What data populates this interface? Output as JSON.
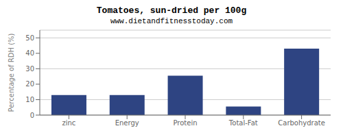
{
  "chart_data": {
    "type": "bar",
    "title": "Tomatoes, sun-dried per 100g",
    "subtitle": "www.dietandfitnesstoday.com",
    "categories": [
      "zinc",
      "Energy",
      "Protein",
      "Total-Fat",
      "Carbohydrate"
    ],
    "values": [
      13.0,
      13.0,
      25.5,
      5.5,
      43.0
    ],
    "color": "#2e4482",
    "ylabel": "Percentage of RDH (%)",
    "ylim": [
      0,
      55
    ],
    "yticks": [
      0,
      10,
      20,
      30,
      40,
      50
    ],
    "grid": true
  }
}
